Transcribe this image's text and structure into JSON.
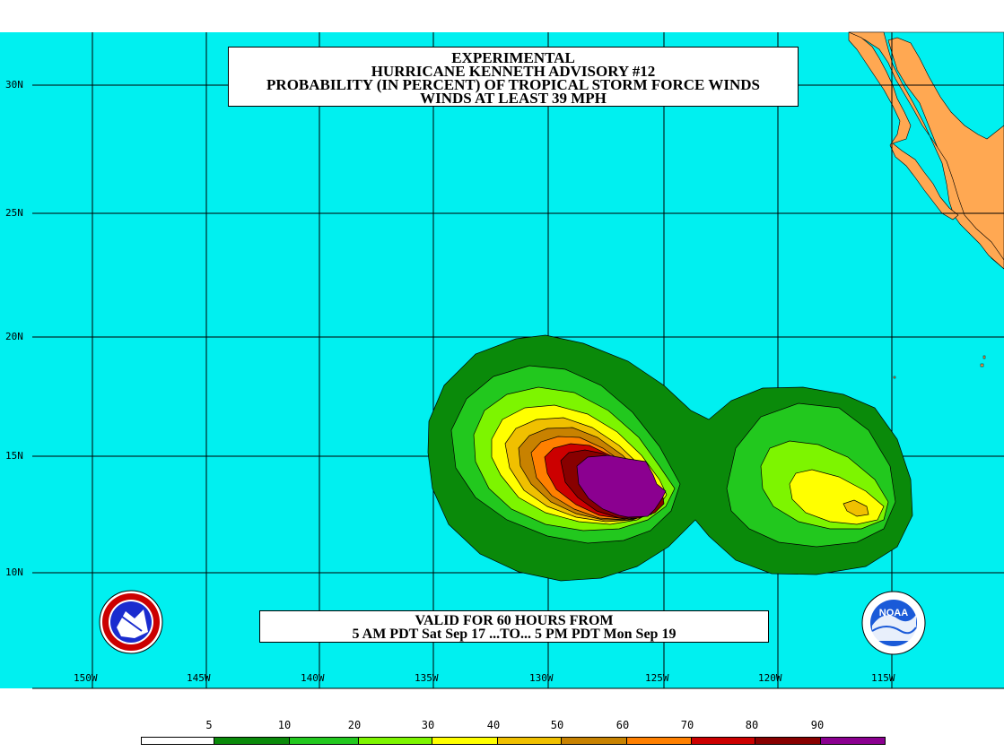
{
  "title": {
    "line1": "EXPERIMENTAL",
    "line2": "HURRICANE KENNETH ADVISORY #12",
    "line3": "PROBABILITY (IN PERCENT) OF TROPICAL STORM FORCE WINDS",
    "line4": "WINDS AT LEAST 39 MPH"
  },
  "validity": {
    "line1": "VALID FOR 60 HOURS FROM",
    "line2": "5 AM PDT Sat Sep 17 ...TO... 5 PM PDT Mon Sep 19"
  },
  "latitude_labels": [
    "30N",
    "25N",
    "20N",
    "15N",
    "10N"
  ],
  "longitude_labels": [
    "150W",
    "145W",
    "140W",
    "135W",
    "130W",
    "125W",
    "120W",
    "115W"
  ],
  "legend": {
    "labels": [
      "5",
      "10",
      "20",
      "30",
      "40",
      "50",
      "60",
      "70",
      "80",
      "90"
    ],
    "colors": [
      "#ffffff",
      "#0a8a0a",
      "#22c81e",
      "#7df500",
      "#ffff00",
      "#f0c000",
      "#c88200",
      "#ff8000",
      "#cc0000",
      "#880000",
      "#8b0090"
    ]
  },
  "colors": {
    "ocean": "#00f0f0",
    "land": "#ffa852",
    "grid": "#000000"
  },
  "logos": {
    "left": "nws-logo",
    "right": "noaa-logo",
    "right_text": "NOAA"
  }
}
